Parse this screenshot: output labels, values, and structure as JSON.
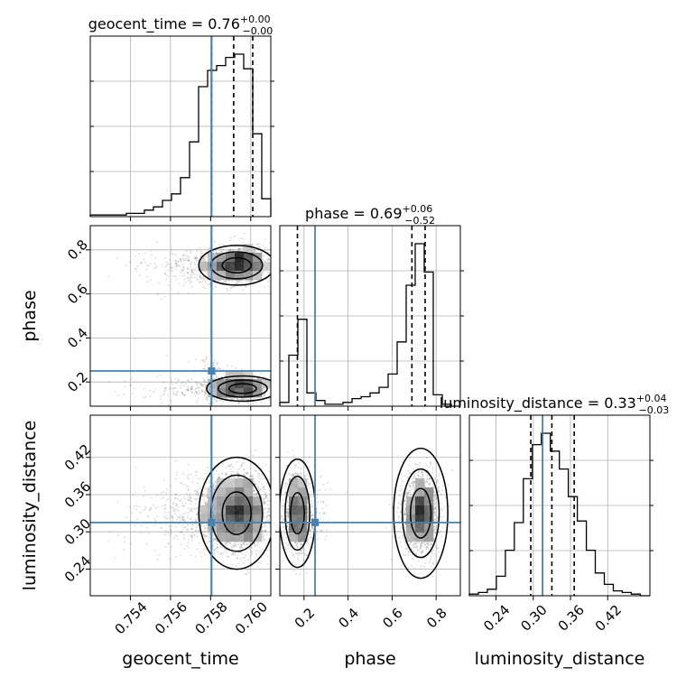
{
  "chart_data": {
    "type": "corner",
    "parameters": [
      "geocent_time",
      "phase",
      "luminosity_distance"
    ],
    "axis_labels": [
      "geocent_time",
      "phase",
      "luminosity_distance"
    ],
    "ranges": [
      [
        0.752,
        0.761
      ],
      [
        0.09,
        0.91
      ],
      [
        0.197,
        0.488
      ]
    ],
    "ticks": [
      [
        "0.754",
        "0.756",
        "0.758",
        "0.760"
      ],
      [
        "0.2",
        "0.4",
        "0.6",
        "0.8"
      ],
      [
        "0.24",
        "0.30",
        "0.36",
        "0.42"
      ]
    ],
    "tick_values": [
      [
        0.754,
        0.756,
        0.758,
        0.76
      ],
      [
        0.2,
        0.4,
        0.6,
        0.8
      ],
      [
        0.24,
        0.3,
        0.36,
        0.42
      ]
    ],
    "truths": [
      0.75805,
      0.25,
      0.315
    ],
    "truth_color": "#4682b4",
    "titles": [
      {
        "base": "geocent_time = 0.76",
        "sup": "+0.00",
        "sub": "−0.00"
      },
      {
        "base": "phase = 0.69",
        "sup": "+0.06",
        "sub": "−0.52"
      },
      {
        "base": "luminosity_distance = 0.33",
        "sup": "+0.04",
        "sub": "−0.03"
      }
    ],
    "quantiles": [
      [
        0.75805,
        0.75915,
        0.7601
      ],
      [
        0.17,
        0.69,
        0.75
      ],
      [
        0.296,
        0.33,
        0.366
      ]
    ],
    "histograms": [
      {
        "bin_edges_start": 0.752,
        "bin_width": 0.00045,
        "counts": [
          0.01,
          0.01,
          0.01,
          0.01,
          0.02,
          0.02,
          0.04,
          0.06,
          0.1,
          0.14,
          0.24,
          0.46,
          0.8,
          0.9,
          0.93,
          0.98,
          1.0,
          0.91,
          0.51,
          0.11
        ]
      },
      {
        "bin_edges_start": 0.09,
        "bin_width": 0.041,
        "counts": [
          0.02,
          0.27,
          0.46,
          0.07,
          0.03,
          0.01,
          0.01,
          0.02,
          0.04,
          0.05,
          0.07,
          0.1,
          0.17,
          0.34,
          0.64,
          0.86,
          0.71,
          0.06,
          0.01,
          0.0
        ]
      },
      {
        "bin_edges_start": 0.197,
        "bin_width": 0.0145,
        "counts": [
          0.01,
          0.02,
          0.04,
          0.12,
          0.28,
          0.45,
          0.72,
          0.93,
          1.0,
          0.89,
          0.78,
          0.61,
          0.46,
          0.28,
          0.14,
          0.07,
          0.03,
          0.02,
          0.01,
          0.0
        ]
      }
    ],
    "contour_levels": 3,
    "grid": true
  }
}
